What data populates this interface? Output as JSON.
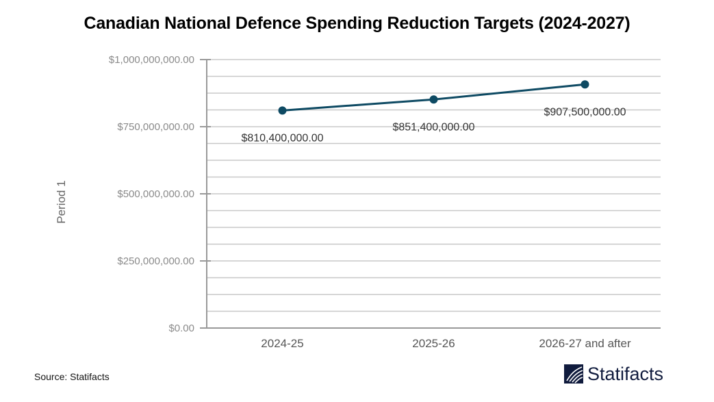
{
  "chart_data": {
    "type": "line",
    "title": "Canadian National Defence Spending Reduction Targets (2024-2027)",
    "xlabel": "",
    "ylabel": "Period 1",
    "categories": [
      "2024-25",
      "2025-26",
      "2026-27 and after"
    ],
    "series": [
      {
        "name": "Period 1",
        "values": [
          810400000,
          851400000,
          907500000
        ],
        "labels": [
          "$810,400,000.00",
          "$851,400,000.00",
          "$907,500,000.00"
        ],
        "color": "#0e4a63"
      }
    ],
    "ylim": [
      0,
      1000000000
    ],
    "yticks": [
      0,
      250000000,
      500000000,
      750000000,
      1000000000
    ],
    "ytick_labels": [
      "$0.00",
      "$250,000,000.00",
      "$500,000,000.00",
      "$750,000,000.00",
      "$1,000,000,000.00"
    ],
    "minor_gridlines_per_major": 3,
    "grid": true,
    "legend": "none"
  },
  "footer": {
    "source": "Source: Statifacts",
    "brand": "Statifacts",
    "brand_icon": "statifacts-logo-icon"
  }
}
